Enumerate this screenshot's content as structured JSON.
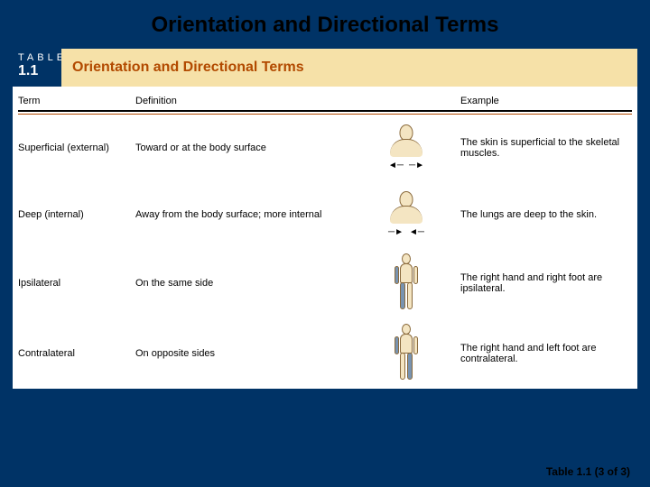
{
  "slide": {
    "title": "Orientation and Directional Terms",
    "footer": "Table 1.1 (3 of 3)"
  },
  "table": {
    "label_word": "TABLE",
    "label_number": "1.1",
    "caption": "Orientation and Directional Terms",
    "caption_color": "#b24a00",
    "band_bg": "#f6e1a8",
    "columns": {
      "term": "Term",
      "definition": "Definition",
      "example": "Example"
    },
    "rows": [
      {
        "term": "Superficial (external)",
        "definition": "Toward or at the body surface",
        "figure": "torso-outward",
        "example": "The skin is superficial to the skeletal muscles."
      },
      {
        "term": "Deep (internal)",
        "definition": "Away from the body surface; more internal",
        "figure": "torso-inward",
        "example": "The lungs are deep to the skin."
      },
      {
        "term": "Ipsilateral",
        "definition": "On the same side",
        "figure": "body-same-side",
        "example": "The right hand and right foot are ipsilateral."
      },
      {
        "term": "Contralateral",
        "definition": "On opposite sides",
        "figure": "body-opposite-side",
        "example": "The right hand and left foot are contralateral."
      }
    ]
  }
}
